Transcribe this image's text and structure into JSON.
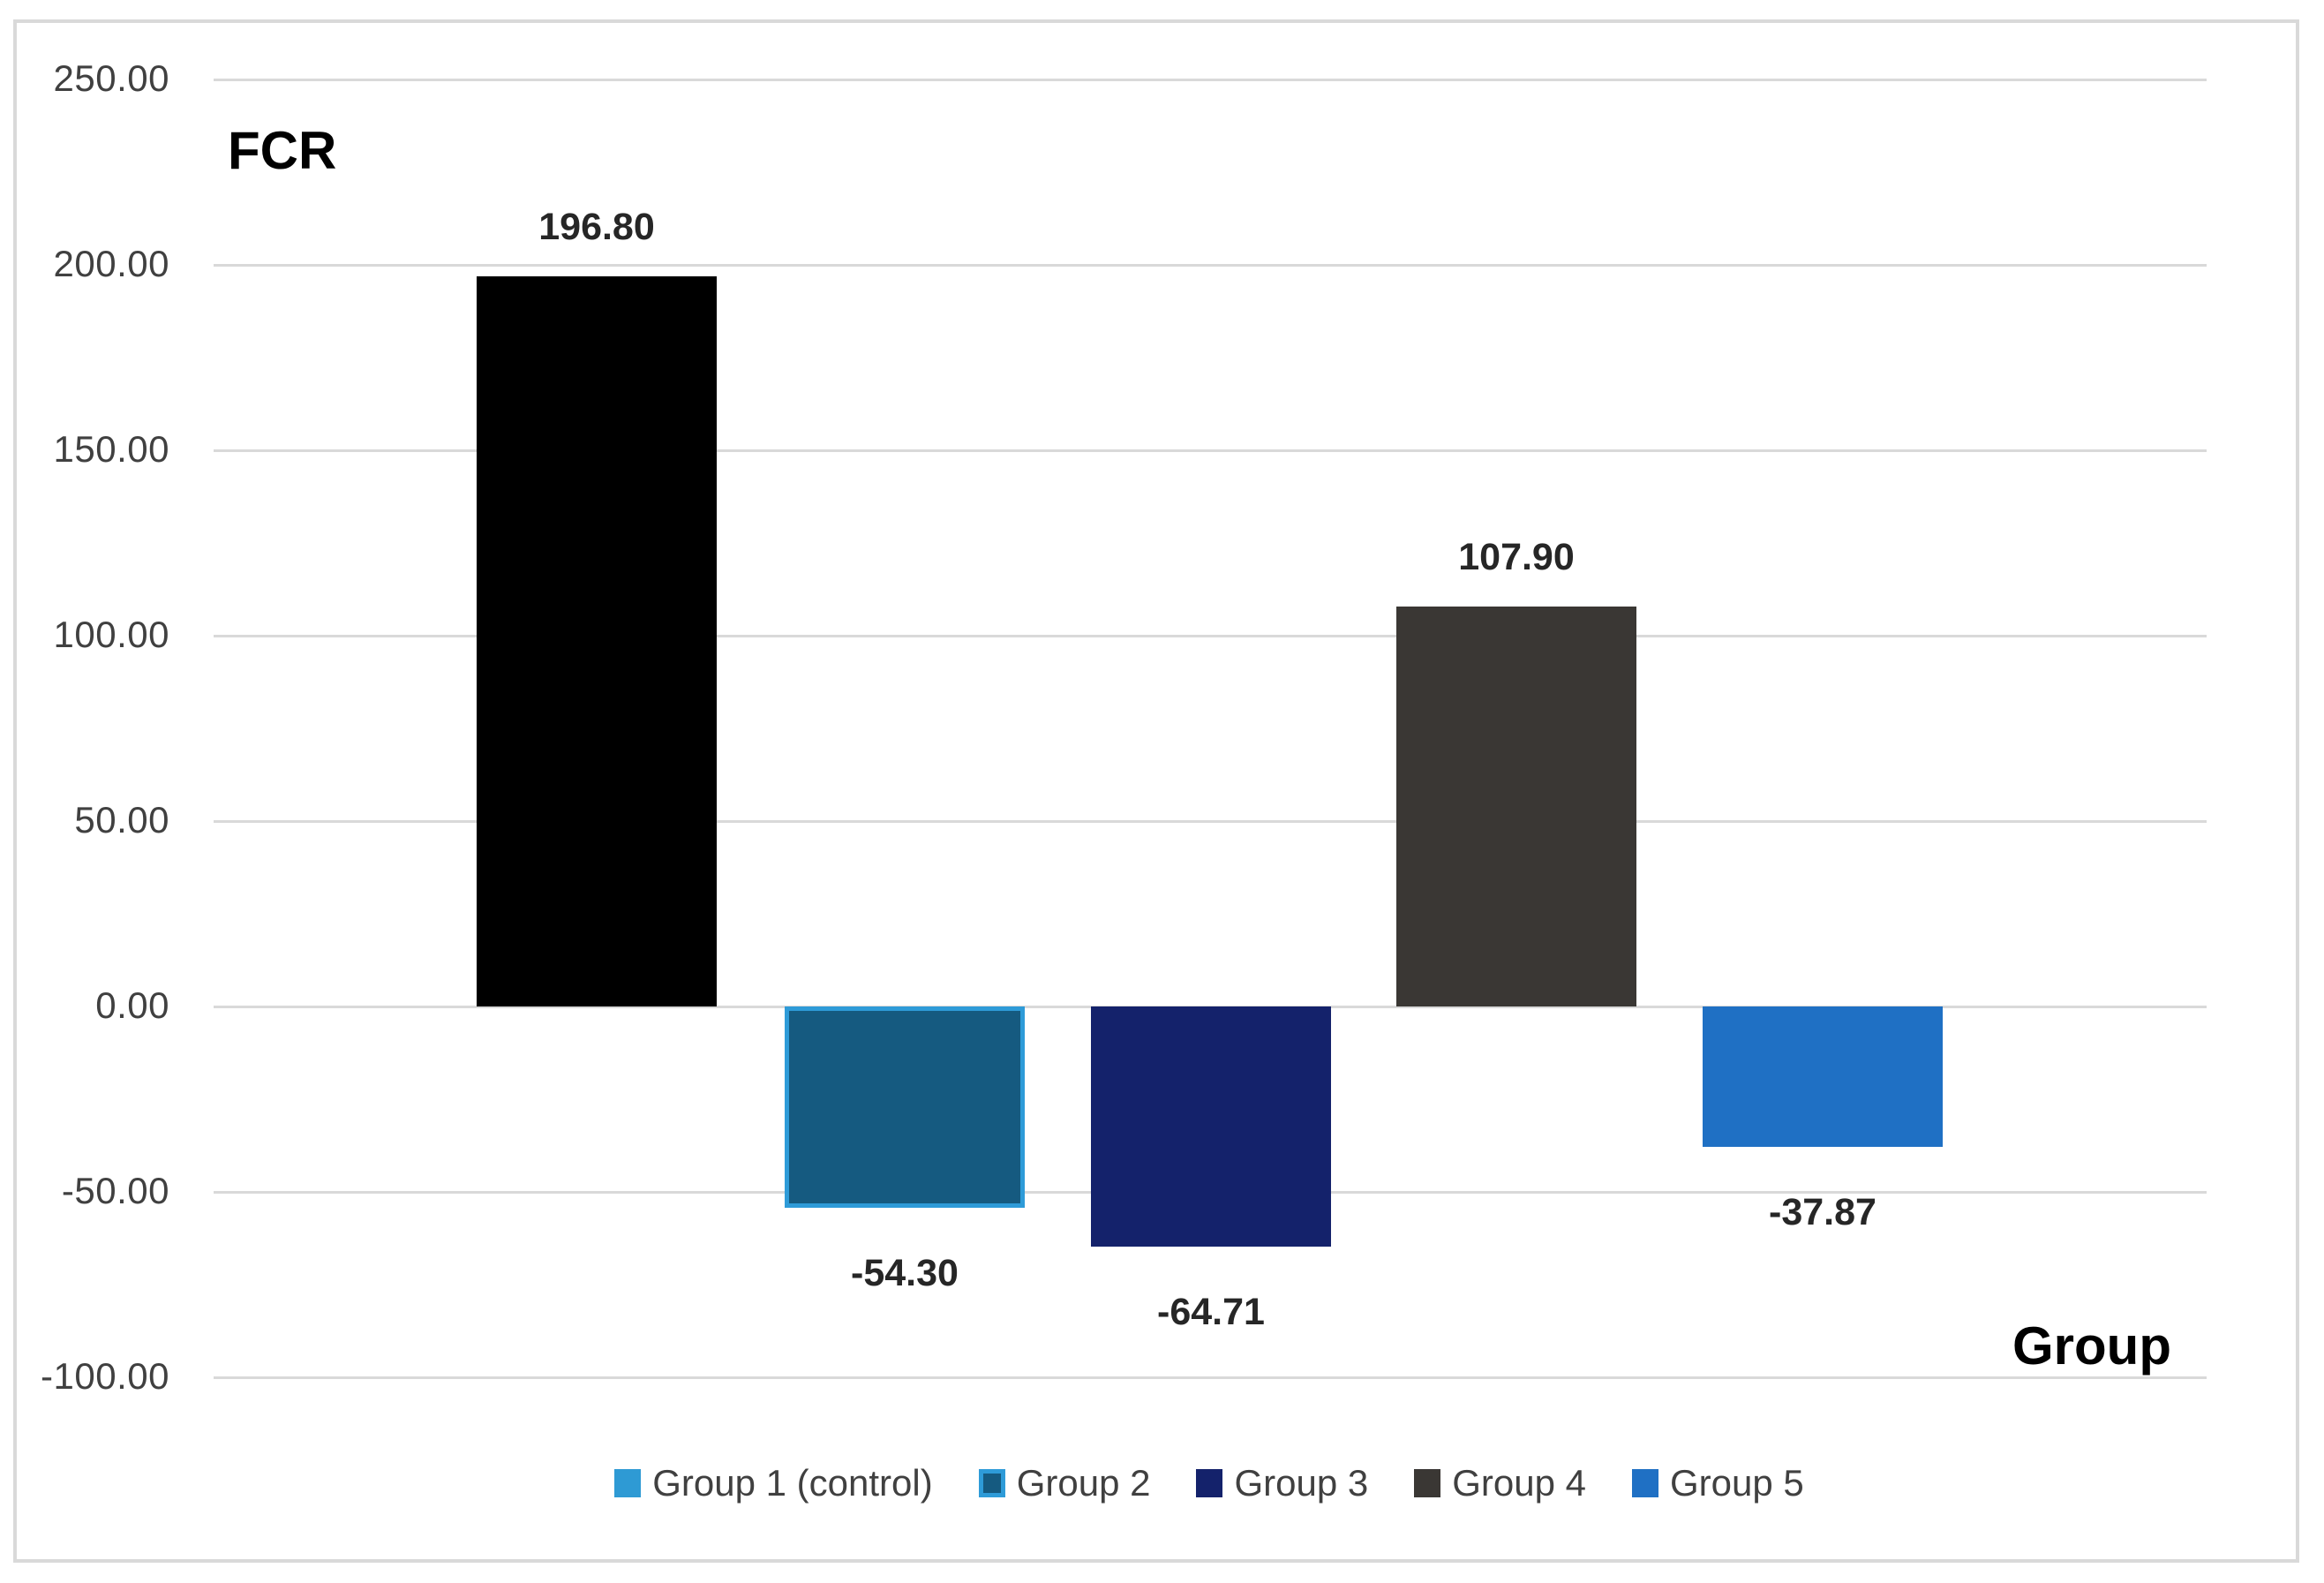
{
  "chart_data": {
    "type": "bar",
    "title": "",
    "ylabel": "FCR",
    "xlabel": "Group",
    "categories": [
      "Group 1 (control)",
      "Group 2",
      "Group 3",
      "Group 4",
      "Group 5"
    ],
    "values": [
      196.8,
      -54.3,
      -64.71,
      107.9,
      -37.87
    ],
    "data_labels": [
      "196.80",
      "-54.30",
      "-64.71",
      "107.90",
      "-37.87"
    ],
    "bar_colors": [
      "#000000",
      "#155A80",
      "#14226B",
      "#3A3734",
      "#1F70C4"
    ],
    "bar_border_colors": [
      null,
      "#2E9BD8",
      null,
      null,
      null
    ],
    "ylim": [
      -100,
      250
    ],
    "y_ticks": [
      {
        "label": "250.00",
        "value": 250
      },
      {
        "label": "200.00",
        "value": 200
      },
      {
        "label": "150.00",
        "value": 150
      },
      {
        "label": "100.00",
        "value": 100
      },
      {
        "label": "50.00",
        "value": 50
      },
      {
        "label": "0.00",
        "value": 0
      },
      {
        "label": "-50.00",
        "value": -50
      },
      {
        "label": "-100.00",
        "value": -100
      }
    ],
    "grid": true,
    "legend_position": "bottom",
    "legend": [
      {
        "label": "Group 1 (control)",
        "color": "#2E9AD4",
        "border": null
      },
      {
        "label": "Group 2",
        "color": "#155A80",
        "border": "#2E9BD8"
      },
      {
        "label": "Group 3",
        "color": "#14226B",
        "border": null
      },
      {
        "label": "Group 4",
        "color": "#3A3734",
        "border": null
      },
      {
        "label": "Group 5",
        "color": "#1F70C4",
        "border": null
      }
    ],
    "colors": {
      "gridline": "#D9D9D9",
      "frame_border": "#D9D9D9",
      "tick_text": "#404040",
      "data_label_text": "#262626",
      "legend_text": "#404040",
      "axis_title_text": "#000000",
      "background": "#FFFFFF"
    }
  }
}
